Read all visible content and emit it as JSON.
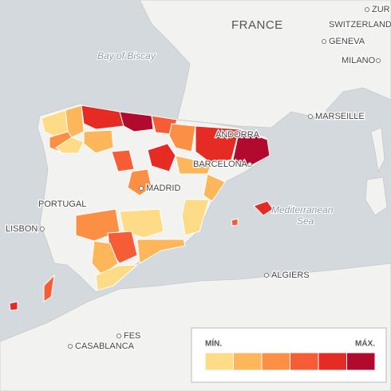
{
  "labels": {
    "france": "FRANCE",
    "zurich": "ZUR",
    "switzerland": "SWITZERLAND",
    "geneva": "GENEVA",
    "milano": "MILANO",
    "bay_of_biscay": "Bay of Biscay",
    "marseille": "MARSEILLE",
    "andorra": "ANDORRA",
    "barcelona": "BARCELONA",
    "madrid": "MADRID",
    "portugal": "PORTUGAL",
    "lisbon": "LISBON",
    "mediterranean": "Mediterranean",
    "sea": "Sea",
    "algiers": "ALGIERS",
    "fes": "FES",
    "casablanca": "CASABLANCA"
  },
  "legend": {
    "min_label": "MÍN.",
    "max_label": "MÁX.",
    "colors": [
      "#fedb86",
      "#fdb65a",
      "#fb9045",
      "#f65c36",
      "#e52b24",
      "#b10a2e"
    ]
  }
}
